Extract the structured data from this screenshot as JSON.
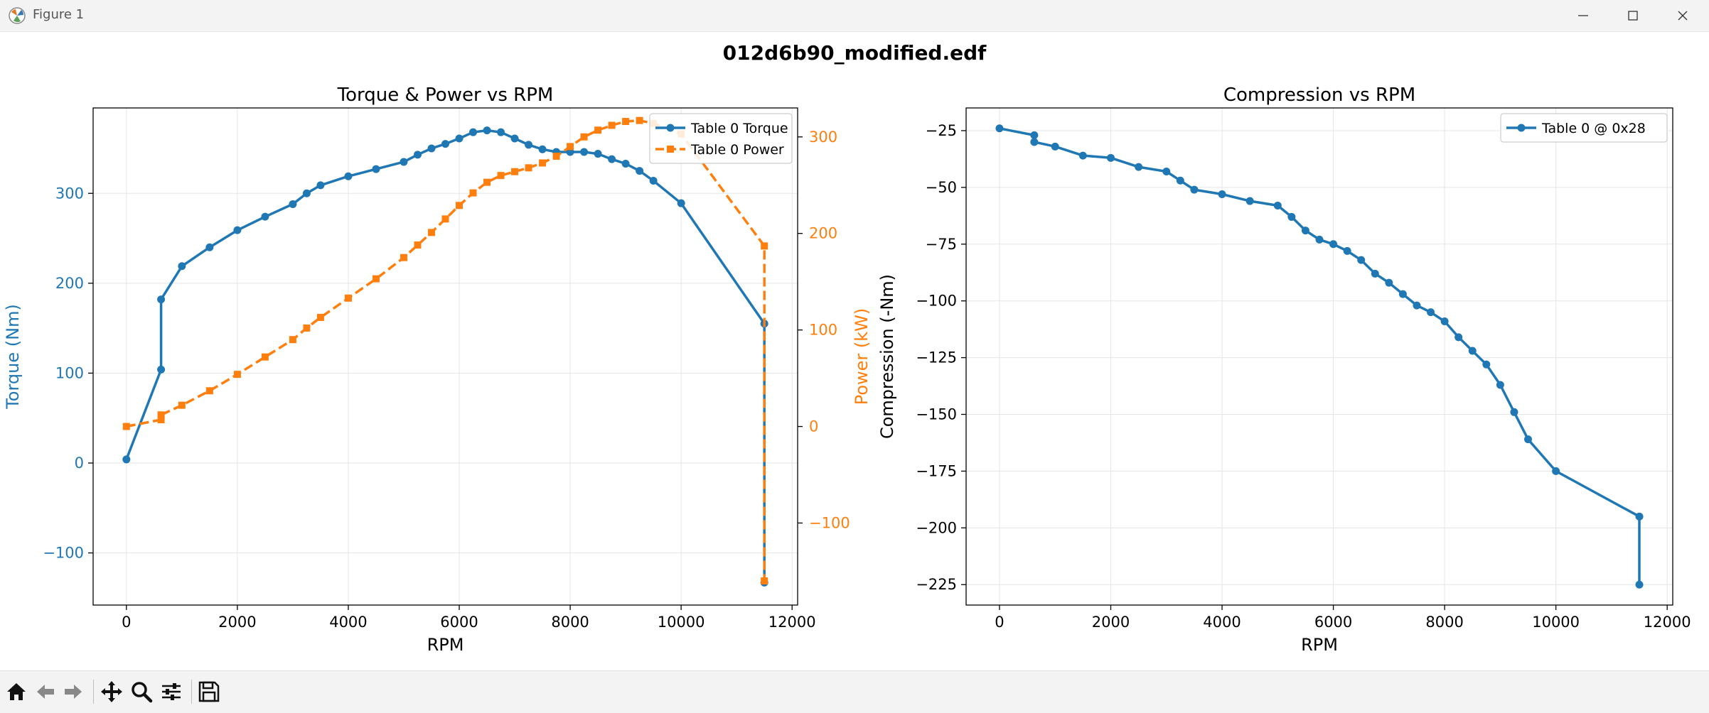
{
  "window": {
    "title": "Figure 1"
  },
  "suptitle": "012d6b90_modified.edf",
  "colors": {
    "torque": "#1f77b4",
    "power": "#ff7f0e",
    "compression": "#1f77b4",
    "grid": "#e5e5e5",
    "axis": "#000000"
  },
  "toolbar": {
    "buttons": [
      "home-icon",
      "back-icon",
      "forward-icon",
      "pan-icon",
      "zoom-icon",
      "configure-icon",
      "save-icon"
    ]
  },
  "chart_data": [
    {
      "type": "line",
      "title": "Torque & Power vs RPM",
      "xlabel": "RPM",
      "ylabel": "Torque (Nm)",
      "y2label": "Power (kW)",
      "xlim": [
        -600,
        12100
      ],
      "ylim": [
        -158,
        395
      ],
      "y2lim": [
        -185,
        330
      ],
      "xticks": [
        "0",
        "2000",
        "4000",
        "6000",
        "8000",
        "10000",
        "12000"
      ],
      "yticks": [
        "−100",
        "0",
        "100",
        "200",
        "300"
      ],
      "y2ticks": [
        "−100",
        "0",
        "100",
        "200",
        "300"
      ],
      "legend": {
        "position": "top-right",
        "entries": [
          "Table 0 Torque",
          "Table 0 Power"
        ]
      },
      "grid": true,
      "series": [
        {
          "name": "Table 0 Torque",
          "axis": "left",
          "marker": "circle",
          "linestyle": "solid",
          "x": [
            0,
            625,
            625,
            1000,
            1500,
            2000,
            2500,
            3000,
            3250,
            3500,
            4000,
            4500,
            5000,
            5250,
            5500,
            5750,
            6000,
            6250,
            6500,
            6750,
            7000,
            7250,
            7500,
            7750,
            8000,
            8250,
            8500,
            8750,
            9000,
            9250,
            9500,
            10000,
            11500,
            11500
          ],
          "y": [
            4,
            104,
            182,
            219,
            240,
            259,
            274,
            288,
            300,
            309,
            319,
            327,
            335,
            343,
            350,
            355,
            361,
            368,
            370,
            368,
            361,
            354,
            349,
            346,
            346,
            346,
            344,
            338,
            333,
            325,
            314,
            289,
            155,
            -133
          ]
        },
        {
          "name": "Table 0 Power",
          "axis": "right",
          "marker": "square",
          "linestyle": "dashed",
          "x": [
            0,
            625,
            625,
            1000,
            1500,
            2000,
            2500,
            3000,
            3250,
            3500,
            4000,
            4500,
            5000,
            5250,
            5500,
            5750,
            6000,
            6250,
            6500,
            6750,
            7000,
            7250,
            7500,
            7750,
            8000,
            8250,
            8500,
            8750,
            9000,
            9250,
            9500,
            10000,
            11500,
            11500
          ],
          "y": [
            0,
            7,
            12,
            22,
            37,
            54,
            72,
            90,
            102,
            113,
            133,
            153,
            175,
            188,
            201,
            215,
            229,
            242,
            253,
            260,
            264,
            268,
            273,
            280,
            290,
            300,
            307,
            312,
            316,
            317,
            314,
            303,
            187,
            -160
          ]
        }
      ]
    },
    {
      "type": "line",
      "title": "Compression vs RPM",
      "xlabel": "RPM",
      "ylabel": "Compression (-Nm)",
      "xlim": [
        -600,
        12100
      ],
      "ylim": [
        -234,
        -15
      ],
      "xticks": [
        "0",
        "2000",
        "4000",
        "6000",
        "8000",
        "10000",
        "12000"
      ],
      "yticks": [
        "−225",
        "−200",
        "−175",
        "−150",
        "−125",
        "−100",
        "−75",
        "−50",
        "−25"
      ],
      "legend": {
        "position": "top-right",
        "entries": [
          "Table 0 @ 0x28"
        ]
      },
      "grid": true,
      "series": [
        {
          "name": "Table 0 @ 0x28",
          "axis": "left",
          "marker": "circle",
          "linestyle": "solid",
          "x": [
            0,
            625,
            625,
            1000,
            1500,
            2000,
            2500,
            3000,
            3250,
            3500,
            4000,
            4500,
            5000,
            5250,
            5500,
            5750,
            6000,
            6250,
            6500,
            6750,
            7000,
            7250,
            7500,
            7750,
            8000,
            8250,
            8500,
            8750,
            9000,
            9250,
            9500,
            10000,
            11500,
            11500
          ],
          "y": [
            -24,
            -27,
            -30,
            -32,
            -36,
            -37,
            -41,
            -43,
            -47,
            -51,
            -53,
            -56,
            -58,
            -63,
            -69,
            -73,
            -75,
            -78,
            -82,
            -88,
            -92,
            -97,
            -102,
            -105,
            -109,
            -116,
            -122,
            -128,
            -137,
            -149,
            -161,
            -175,
            -195,
            -225
          ]
        }
      ]
    }
  ]
}
